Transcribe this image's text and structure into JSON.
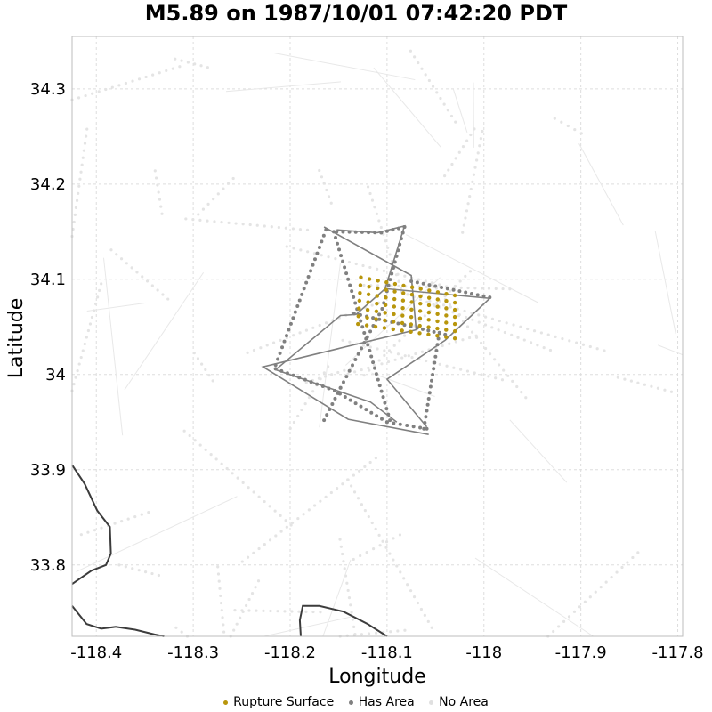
{
  "chart_data": {
    "type": "scatter",
    "title": "M5.89 on 1987/10/01 07:42:20 PDT",
    "xlabel": "Longitude",
    "ylabel": "Latitude",
    "xlim": [
      -118.425,
      -117.795
    ],
    "ylim": [
      33.725,
      34.355
    ],
    "x_ticks": [
      -118.4,
      -118.3,
      -118.2,
      -118.1,
      -118.0,
      -117.9,
      -117.8
    ],
    "x_tick_labels": [
      "-118.4",
      "-118.3",
      "-118.2",
      "-118.1",
      "-118",
      "-117.9",
      "-117.8"
    ],
    "y_ticks": [
      33.8,
      33.9,
      34.0,
      34.1,
      34.2,
      34.3
    ],
    "y_tick_labels": [
      "33.8",
      "33.9",
      "34",
      "34.1",
      "34.2",
      "34.3"
    ],
    "grid": true,
    "legend_position": "bottom",
    "colors": {
      "rupture": "#b8960c",
      "has_area": "#808080",
      "no_area": "#e0e0e0",
      "coastline": "#3c3c3c"
    },
    "series": [
      {
        "name": "Rupture Surface",
        "type": "dot-grid",
        "corners": [
          [
            -118.127,
            34.102
          ],
          [
            -118.03,
            34.083
          ],
          [
            -118.03,
            34.038
          ],
          [
            -118.13,
            34.053
          ]
        ],
        "rows": 7,
        "cols": 12
      },
      {
        "name": "Has Area",
        "polygons": [
          [
            [
              -118.165,
              34.155
            ],
            [
              -118.075,
              34.104
            ],
            [
              -118.07,
              34.047
            ],
            [
              -118.228,
              34.008
            ],
            [
              -118.14,
              33.953
            ],
            [
              -118.057,
              33.937
            ]
          ],
          [
            [
              -118.152,
              34.152
            ],
            [
              -118.11,
              34.149
            ],
            [
              -118.082,
              34.156
            ],
            [
              -118.102,
              34.09
            ],
            [
              -118.132,
              34.063
            ],
            [
              -118.148,
              34.062
            ],
            [
              -118.215,
              34.005
            ],
            [
              -118.117,
              33.971
            ],
            [
              -118.09,
              33.95
            ]
          ],
          [
            [
              -118.1,
              34.09
            ],
            [
              -117.994,
              34.08
            ],
            [
              -118.04,
              34.036
            ],
            [
              -118.1,
              33.995
            ],
            [
              -118.059,
              33.945
            ]
          ]
        ],
        "dotted_traces": [
          [
            [
              -118.163,
              34.152
            ],
            [
              -118.215,
              34.01
            ]
          ],
          [
            [
              -118.152,
              34.15
            ],
            [
              -118.106,
              34.149
            ],
            [
              -118.082,
              34.155
            ],
            [
              -118.105,
              34.069
            ],
            [
              -118.148,
              33.986
            ],
            [
              -118.165,
              33.952
            ]
          ],
          [
            [
              -118.155,
              34.15
            ],
            [
              -118.118,
              34.025
            ],
            [
              -118.097,
              33.952
            ]
          ],
          [
            [
              -118.215,
              34.006
            ],
            [
              -118.154,
              33.983
            ],
            [
              -118.1,
              33.95
            ],
            [
              -118.059,
              33.943
            ]
          ],
          [
            [
              -118.134,
              34.064
            ],
            [
              -118.069,
              34.049
            ],
            [
              -118.04,
              34.042
            ]
          ],
          [
            [
              -118.075,
              34.098
            ],
            [
              -117.994,
              34.081
            ]
          ],
          [
            [
              -118.046,
              34.044
            ],
            [
              -118.062,
              33.943
            ]
          ]
        ]
      },
      {
        "name": "No Area",
        "description_visible": false
      }
    ],
    "coastline": [
      [
        [
          -118.425,
          33.905
        ],
        [
          -118.412,
          33.885
        ],
        [
          -118.399,
          33.857
        ],
        [
          -118.386,
          33.84
        ],
        [
          -118.385,
          33.812
        ],
        [
          -118.39,
          33.8
        ],
        [
          -118.405,
          33.794
        ],
        [
          -118.425,
          33.78
        ]
      ],
      [
        [
          -118.425,
          33.757
        ],
        [
          -118.41,
          33.738
        ],
        [
          -118.395,
          33.733
        ],
        [
          -118.38,
          33.735
        ],
        [
          -118.36,
          33.732
        ],
        [
          -118.34,
          33.727
        ],
        [
          -118.33,
          33.725
        ]
      ],
      [
        [
          -118.189,
          33.725
        ],
        [
          -118.19,
          33.742
        ],
        [
          -118.187,
          33.757
        ],
        [
          -118.17,
          33.757
        ],
        [
          -118.145,
          33.751
        ],
        [
          -118.12,
          33.738
        ],
        [
          -118.1,
          33.725
        ]
      ]
    ]
  }
}
